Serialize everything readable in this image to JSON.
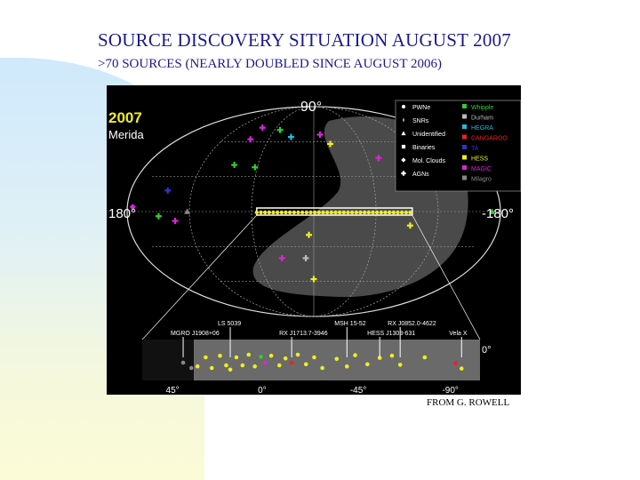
{
  "slide": {
    "title": "SOURCE DISCOVERY SITUATION AUGUST 2007",
    "subtitle": ">70 SOURCES (NEARLY DOUBLED SINCE AUGUST 2006)",
    "credit": "FROM G. ROWELL"
  },
  "chart_data": {
    "type": "scatter",
    "projection": "galactic-aitoff",
    "corner_label": {
      "year": "2007",
      "place": "Merida"
    },
    "axis_labels": {
      "top": "90°",
      "left": "180°",
      "right": "-180°"
    },
    "legend_markers": [
      {
        "label": "PWNe",
        "marker": "circle"
      },
      {
        "label": "SNRs",
        "marker": "star"
      },
      {
        "label": "Unidentified",
        "marker": "triangle"
      },
      {
        "label": "Binaries",
        "marker": "square"
      },
      {
        "label": "Mol. Clouds",
        "marker": "diamond"
      },
      {
        "label": "AGNs",
        "marker": "plus"
      }
    ],
    "legend_experiments": [
      {
        "label": "Whipple",
        "color": "#33cc33"
      },
      {
        "label": "Durham",
        "color": "#bbbbbb"
      },
      {
        "label": "HEGRA",
        "color": "#22bbdd"
      },
      {
        "label": "CANGAROO",
        "color": "#ee2222"
      },
      {
        "label": "TA",
        "color": "#3333cc"
      },
      {
        "label": "HESS",
        "color": "#eeee22"
      },
      {
        "label": "MAGIC",
        "color": "#dd22dd"
      },
      {
        "label": "Milagro",
        "color": "#888888"
      }
    ],
    "sky_sources": [
      {
        "l": 160,
        "b": 72,
        "experiment": "MAGIC",
        "class": "AGNs"
      },
      {
        "l": 95,
        "b": 70,
        "experiment": "Whipple",
        "class": "AGNs"
      },
      {
        "l": 130,
        "b": 62,
        "experiment": "MAGIC",
        "class": "AGNs"
      },
      {
        "l": 50,
        "b": 64,
        "experiment": "HEGRA",
        "class": "AGNs"
      },
      {
        "l": -15,
        "b": 66,
        "experiment": "MAGIC",
        "class": "AGNs"
      },
      {
        "l": -30,
        "b": 58,
        "experiment": "HESS",
        "class": "AGNs"
      },
      {
        "l": 100,
        "b": 40,
        "experiment": "Whipple",
        "class": "AGNs"
      },
      {
        "l": 72,
        "b": 38,
        "experiment": "Whipple",
        "class": "AGNs"
      },
      {
        "l": -120,
        "b": 34,
        "experiment": "HESS",
        "class": "AGNs"
      },
      {
        "l": -90,
        "b": 46,
        "experiment": "MAGIC",
        "class": "AGNs"
      },
      {
        "l": 148,
        "b": 18,
        "experiment": "TA",
        "class": "AGNs"
      },
      {
        "l": 175,
        "b": 4,
        "experiment": "MAGIC",
        "class": "Mol. Clouds"
      },
      {
        "l": 150,
        "b": -4,
        "experiment": "Whipple",
        "class": "AGNs"
      },
      {
        "l": 135,
        "b": -8,
        "experiment": "MAGIC",
        "class": "AGNs"
      },
      {
        "l": 122,
        "b": 0,
        "experiment": "Milagro",
        "class": "Unidentified"
      },
      {
        "l": -172,
        "b": 0,
        "experiment": "Whipple",
        "class": "Unidentified"
      },
      {
        "l": 5,
        "b": -20,
        "experiment": "HESS",
        "class": "AGNs"
      },
      {
        "l": 40,
        "b": -40,
        "experiment": "MAGIC",
        "class": "AGNs"
      },
      {
        "l": 10,
        "b": -40,
        "experiment": "Durham",
        "class": "AGNs"
      },
      {
        "l": 0,
        "b": -58,
        "experiment": "HESS",
        "class": "AGNs"
      },
      {
        "l": -95,
        "b": -12,
        "experiment": "HESS",
        "class": "AGNs"
      }
    ],
    "plane_band": {
      "l_from": 55,
      "l_to": -95,
      "b_half_width": 3
    },
    "inset_labels": [
      {
        "label": "MGRO J1908+06",
        "l": 40
      },
      {
        "label": "LS 5039",
        "l": 17
      },
      {
        "label": "RX J1713.7-3946",
        "l": -13
      },
      {
        "label": "MSH 15-52",
        "l": -40
      },
      {
        "label": "HESS J1303-631",
        "l": -56
      },
      {
        "label": "RX J0852.0-4622",
        "l": -66
      },
      {
        "label": "Vela X",
        "l": -96
      }
    ],
    "inset_ticks": [
      {
        "label": "45°",
        "l": 45
      },
      {
        "label": "0°",
        "l": 0
      },
      {
        "label": "-45°",
        "l": -45
      },
      {
        "label": "-90°",
        "l": -90
      }
    ],
    "inset_b_label": "0°",
    "inset_sources": [
      {
        "l": 40,
        "b": -0.5,
        "experiment": "Milagro"
      },
      {
        "l": 36,
        "b": -1.5,
        "experiment": "Milagro"
      },
      {
        "l": 33,
        "b": -1.2,
        "experiment": "HESS"
      },
      {
        "l": 29,
        "b": 0.5,
        "experiment": "HESS"
      },
      {
        "l": 26,
        "b": -1.5,
        "experiment": "HESS"
      },
      {
        "l": 22,
        "b": 0.8,
        "experiment": "HESS"
      },
      {
        "l": 19,
        "b": -1,
        "experiment": "HESS"
      },
      {
        "l": 17,
        "b": -1.8,
        "experiment": "HESS"
      },
      {
        "l": 14,
        "b": 0.5,
        "experiment": "HESS"
      },
      {
        "l": 11,
        "b": -1,
        "experiment": "HESS"
      },
      {
        "l": 8,
        "b": 1,
        "experiment": "HESS"
      },
      {
        "l": 5,
        "b": -1.2,
        "experiment": "HESS"
      },
      {
        "l": 2,
        "b": 0.6,
        "experiment": "Whipple"
      },
      {
        "l": 0,
        "b": -0.5,
        "experiment": "MAGIC"
      },
      {
        "l": -3,
        "b": 0.8,
        "experiment": "HESS"
      },
      {
        "l": -7,
        "b": -1,
        "experiment": "HESS"
      },
      {
        "l": -10,
        "b": 0.3,
        "experiment": "HESS"
      },
      {
        "l": -13,
        "b": -0.5,
        "experiment": "CANGAROO"
      },
      {
        "l": -16,
        "b": 1,
        "experiment": "HESS"
      },
      {
        "l": -20,
        "b": -0.8,
        "experiment": "HESS"
      },
      {
        "l": -24,
        "b": 0.5,
        "experiment": "HESS"
      },
      {
        "l": -28,
        "b": -1.5,
        "experiment": "HESS"
      },
      {
        "l": -35,
        "b": 0.2,
        "experiment": "HESS"
      },
      {
        "l": -40,
        "b": -1.2,
        "experiment": "HESS"
      },
      {
        "l": -44,
        "b": 0.9,
        "experiment": "HESS"
      },
      {
        "l": -50,
        "b": -0.8,
        "experiment": "HESS"
      },
      {
        "l": -56,
        "b": 0.4,
        "experiment": "HESS"
      },
      {
        "l": -62,
        "b": 0.8,
        "experiment": "HESS"
      },
      {
        "l": -66,
        "b": -0.9,
        "experiment": "HESS"
      },
      {
        "l": -78,
        "b": 0.5,
        "experiment": "HESS"
      },
      {
        "l": -93,
        "b": -0.6,
        "experiment": "CANGAROO"
      },
      {
        "l": -96,
        "b": -1.6,
        "experiment": "HESS"
      }
    ]
  }
}
